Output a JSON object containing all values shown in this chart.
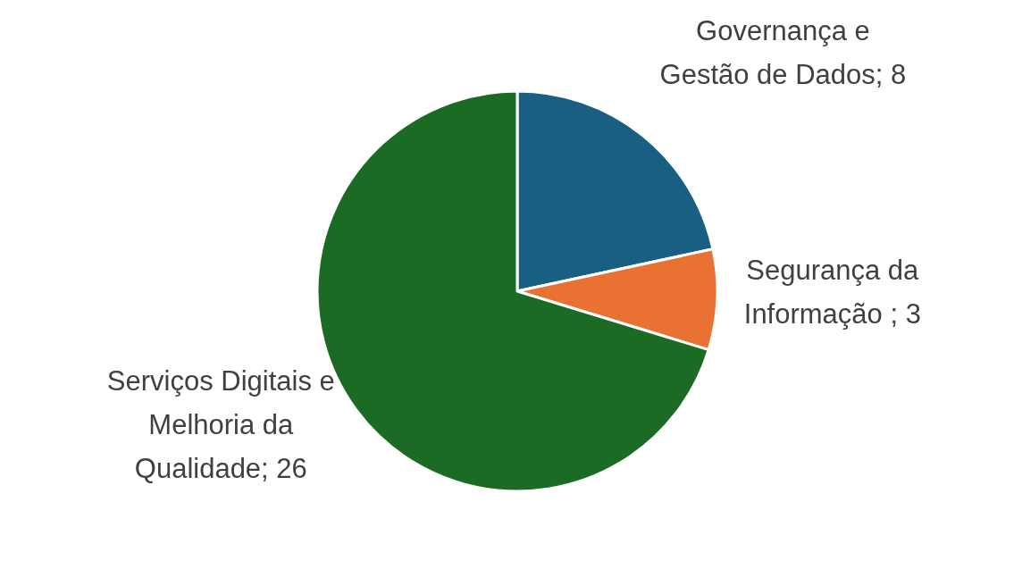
{
  "chart_data": {
    "type": "pie",
    "categories": [
      "Governança e Gestão de Dados; 8",
      "Segurança da Informação ; 3",
      "Serviços Digitais e Melhoria da Qualidade; 26"
    ],
    "values": [
      8,
      3,
      26
    ],
    "colors": [
      "#185f82",
      "#e97132",
      "#1b6b24"
    ]
  }
}
